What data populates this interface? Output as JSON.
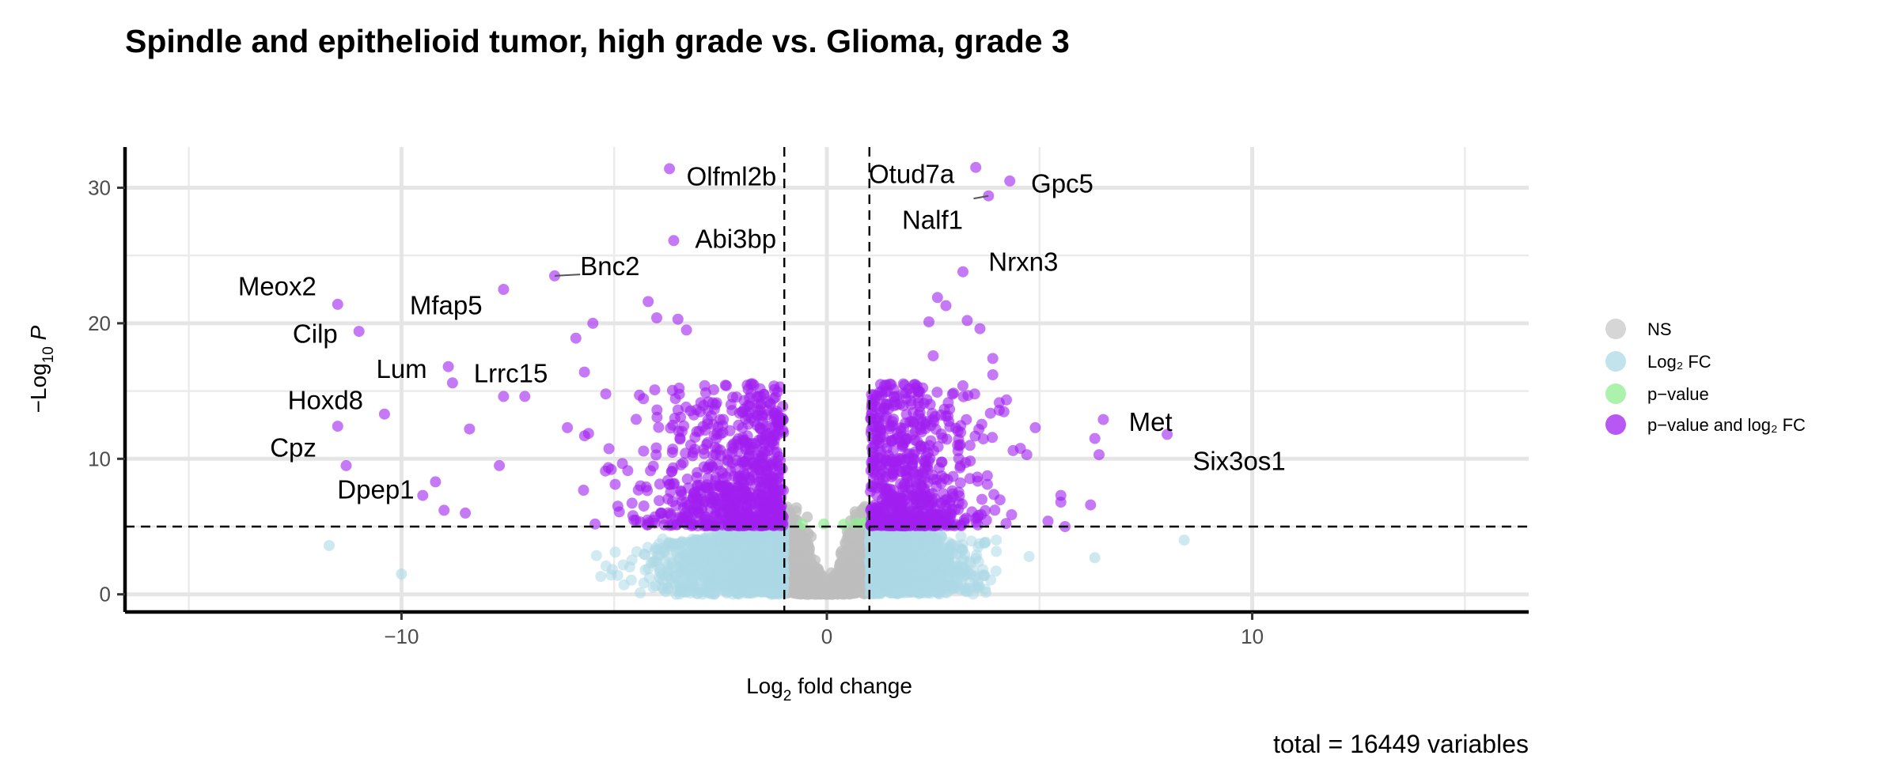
{
  "chart_data": {
    "type": "scatter",
    "title": "Spindle and epithelioid tumor, high grade vs. Glioma, grade 3",
    "xlabel": {
      "pre": "Log",
      "sub": "2",
      "post": " fold change"
    },
    "ylabel": {
      "pre": "−Log",
      "sub": "10",
      "post": " P"
    },
    "xlim": [
      -16.5,
      16.5
    ],
    "ylim": [
      -1.3,
      33
    ],
    "x_ticks": [
      -10,
      0,
      10
    ],
    "x_tick_labels": [
      "−10",
      "0",
      "10"
    ],
    "y_ticks": [
      0,
      10,
      20,
      30
    ],
    "y_tick_labels": [
      "0",
      "10",
      "20",
      "30"
    ],
    "grid": true,
    "fc_cutoff": 1,
    "p_cutoff": 5,
    "caption": "total = 16449 variables",
    "legend": {
      "position": "right",
      "items": [
        {
          "label": "NS",
          "color": "#c8c8c8"
        },
        {
          "label": "Log₂ FC",
          "color": "#add8e6"
        },
        {
          "label": "p−value",
          "color": "#90ee90"
        },
        {
          "label": "p−value and log₂ FC",
          "color": "#a020f0"
        }
      ]
    },
    "colors": {
      "ns": "#bebebe",
      "fc": "#add8e6",
      "p": "#90ee90",
      "both": "#a020f0"
    },
    "labeled_genes": [
      {
        "name": "Meox2",
        "x": -11.5,
        "y": 21.4
      },
      {
        "name": "Cilp",
        "x": -11.0,
        "y": 19.4
      },
      {
        "name": "Lum",
        "x": -8.9,
        "y": 16.8
      },
      {
        "name": "Hoxd8",
        "x": -10.4,
        "y": 13.3
      },
      {
        "name": "Cpz",
        "x": -11.5,
        "y": 12.4
      },
      {
        "name": "Dpep1",
        "x": -9.2,
        "y": 8.3
      },
      {
        "name": "Mfap5",
        "x": -7.6,
        "y": 22.5
      },
      {
        "name": "Lrrc15",
        "x": -8.8,
        "y": 15.6
      },
      {
        "name": "Bnc2",
        "x": -6.4,
        "y": 23.5
      },
      {
        "name": "Olfml2b",
        "x": -3.7,
        "y": 31.4
      },
      {
        "name": "Abi3bp",
        "x": -3.6,
        "y": 26.1
      },
      {
        "name": "Otud7a",
        "x": 3.5,
        "y": 31.5
      },
      {
        "name": "Gpc5",
        "x": 4.3,
        "y": 30.5
      },
      {
        "name": "Nalf1",
        "x": 3.8,
        "y": 29.4
      },
      {
        "name": "Nrxn3",
        "x": 3.2,
        "y": 23.8
      },
      {
        "name": "Met",
        "x": 6.5,
        "y": 12.9
      },
      {
        "name": "Six3os1",
        "x": 8.0,
        "y": 11.8
      }
    ],
    "notable_points": [
      {
        "x": -11.7,
        "y": 3.6,
        "group": "fc"
      },
      {
        "x": -10.0,
        "y": 1.5,
        "group": "fc"
      },
      {
        "x": 8.4,
        "y": 4.0,
        "group": "fc"
      },
      {
        "x": 6.3,
        "y": 2.7,
        "group": "fc"
      },
      {
        "x": -11.3,
        "y": 9.5,
        "group": "both"
      },
      {
        "x": -9.5,
        "y": 7.3,
        "group": "both"
      },
      {
        "x": -9.0,
        "y": 6.2,
        "group": "both"
      },
      {
        "x": -8.5,
        "y": 6.0,
        "group": "both"
      },
      {
        "x": -8.4,
        "y": 12.2,
        "group": "both"
      },
      {
        "x": -7.6,
        "y": 14.6,
        "group": "both"
      },
      {
        "x": -7.1,
        "y": 14.6,
        "group": "both"
      },
      {
        "x": -7.7,
        "y": 9.5,
        "group": "both"
      },
      {
        "x": -6.1,
        "y": 12.3,
        "group": "both"
      },
      {
        "x": -5.9,
        "y": 18.9,
        "group": "both"
      },
      {
        "x": -5.7,
        "y": 16.4,
        "group": "both"
      },
      {
        "x": -5.5,
        "y": 20.0,
        "group": "both"
      },
      {
        "x": -4.2,
        "y": 21.6,
        "group": "both"
      },
      {
        "x": -4.0,
        "y": 20.4,
        "group": "both"
      },
      {
        "x": -3.5,
        "y": 20.3,
        "group": "both"
      },
      {
        "x": -3.3,
        "y": 19.5,
        "group": "both"
      },
      {
        "x": 2.6,
        "y": 21.9,
        "group": "both"
      },
      {
        "x": 2.8,
        "y": 21.3,
        "group": "both"
      },
      {
        "x": 2.4,
        "y": 20.1,
        "group": "both"
      },
      {
        "x": 3.3,
        "y": 20.2,
        "group": "both"
      },
      {
        "x": 3.6,
        "y": 19.6,
        "group": "both"
      },
      {
        "x": 2.5,
        "y": 17.6,
        "group": "both"
      },
      {
        "x": 3.9,
        "y": 17.4,
        "group": "both"
      },
      {
        "x": 3.9,
        "y": 16.2,
        "group": "both"
      },
      {
        "x": 4.9,
        "y": 12.3,
        "group": "both"
      },
      {
        "x": 4.7,
        "y": 10.3,
        "group": "both"
      },
      {
        "x": 6.3,
        "y": 11.5,
        "group": "both"
      },
      {
        "x": 6.4,
        "y": 10.3,
        "group": "both"
      },
      {
        "x": 5.5,
        "y": 7.3,
        "group": "both"
      },
      {
        "x": 5.5,
        "y": 6.8,
        "group": "both"
      },
      {
        "x": 6.2,
        "y": 6.6,
        "group": "both"
      },
      {
        "x": 5.6,
        "y": 5.0,
        "group": "both"
      },
      {
        "x": 5.2,
        "y": 5.4,
        "group": "both"
      }
    ],
    "bulk_distribution": [
      {
        "group": "ns",
        "region": "|log2FC| < 1, -log10P up to ~6 near 0",
        "count": 1600
      },
      {
        "group": "fc",
        "region": "|log2FC| 1-6, -log10P 0-5",
        "count": 2800
      },
      {
        "group": "p",
        "region": "|log2FC| < 1, -log10P just above 5",
        "count": 6
      },
      {
        "group": "both",
        "region": "log2FC -6 to -1 and 1 to 5, -log10P 5-16",
        "count": 1400
      }
    ]
  }
}
